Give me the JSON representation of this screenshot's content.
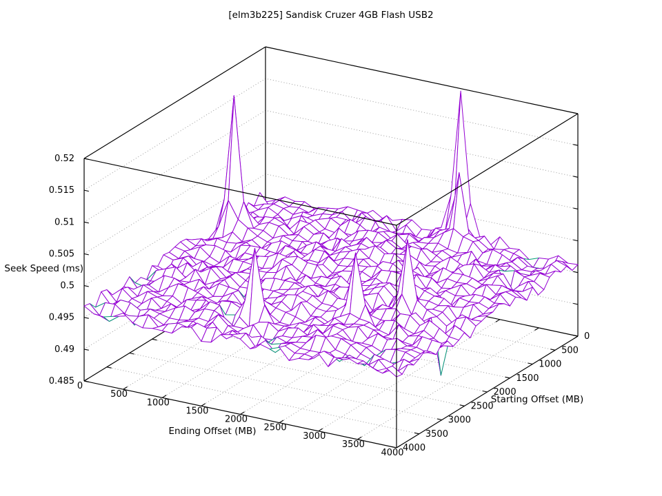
{
  "title": "[elm3b225] Sandisk Cruzer 4GB Flash USB2",
  "chart_data": {
    "type": "surface3d",
    "title": "[elm3b225] Sandisk Cruzer 4GB Flash USB2",
    "xlabel": "Ending Offset (MB)",
    "ylabel": "Starting Offset (MB)",
    "zlabel": "Seek Speed (ms)",
    "xlim": [
      0,
      4000
    ],
    "ylim": [
      0,
      4000
    ],
    "zlim": [
      0.485,
      0.52
    ],
    "xticks": {
      "values": [
        0,
        500,
        1000,
        1500,
        2000,
        2500,
        3000,
        3500,
        4000
      ],
      "labels": [
        "0",
        "500",
        "1000",
        "1500",
        "2000",
        "2500",
        "3000",
        "3500",
        "4000"
      ]
    },
    "yticks": {
      "values": [
        0,
        500,
        1000,
        1500,
        2000,
        2500,
        3000,
        3500,
        4000
      ],
      "labels": [
        "0",
        "500",
        "1000",
        "1500",
        "2000",
        "2500",
        "3000",
        "3500",
        "4000"
      ]
    },
    "zticks": {
      "values": [
        0.485,
        0.49,
        0.495,
        0.5,
        0.505,
        0.51,
        0.515,
        0.52
      ],
      "labels": [
        "0.485",
        "0.49",
        "0.495",
        "0.5",
        "0.505",
        "0.51",
        "0.515",
        "0.52"
      ]
    },
    "grid_on": true,
    "legend": "none",
    "grid_n": 33,
    "base_level": 0.4962,
    "dome": {
      "e": 2100,
      "s": 1300,
      "amp": 0.0022,
      "sigma_e": 1500,
      "sigma_s": 1400
    },
    "noise_amp": 0.0011,
    "wave_amp": 0.0007,
    "green_threshold": 0.4952,
    "spikes": [
      {
        "e": 250,
        "s": 1125,
        "h": 0.0212,
        "sigma": 105
      },
      {
        "e": 2500,
        "s": 0,
        "h": 0.0218,
        "sigma": 105
      },
      {
        "e": 2625,
        "s": 250,
        "h": 0.0095,
        "sigma": 90
      },
      {
        "e": 1750,
        "s": 3250,
        "h": 0.012,
        "sigma": 95
      },
      {
        "e": 2750,
        "s": 2750,
        "h": 0.0117,
        "sigma": 95
      },
      {
        "e": 3125,
        "s": 2250,
        "h": 0.0115,
        "sigma": 95
      }
    ],
    "dips": [
      {
        "e": 3625,
        "s": 2375,
        "h": -0.0075,
        "sigma": 75
      },
      {
        "e": 1750,
        "s": 3375,
        "h": -0.004,
        "sigma": 75
      },
      {
        "e": 1500,
        "s": 3375,
        "h": -0.0035,
        "sigma": 75
      },
      {
        "e": 250,
        "s": 3875,
        "h": -0.002,
        "sigma": 75
      },
      {
        "e": 3625,
        "s": 500,
        "h": -0.0025,
        "sigma": 75
      },
      {
        "e": 3625,
        "s": 875,
        "h": -0.002,
        "sigma": 75
      },
      {
        "e": 1000,
        "s": 3750,
        "h": -0.0022,
        "sigma": 75
      },
      {
        "e": 500,
        "s": 3750,
        "h": -0.002,
        "sigma": 75
      }
    ],
    "colors": {
      "surface_top": "#9400d3",
      "surface_under": "#009e73",
      "border": "#000000",
      "grid": "#9a9a9a",
      "background": "#ffffff",
      "text": "#000000"
    }
  }
}
